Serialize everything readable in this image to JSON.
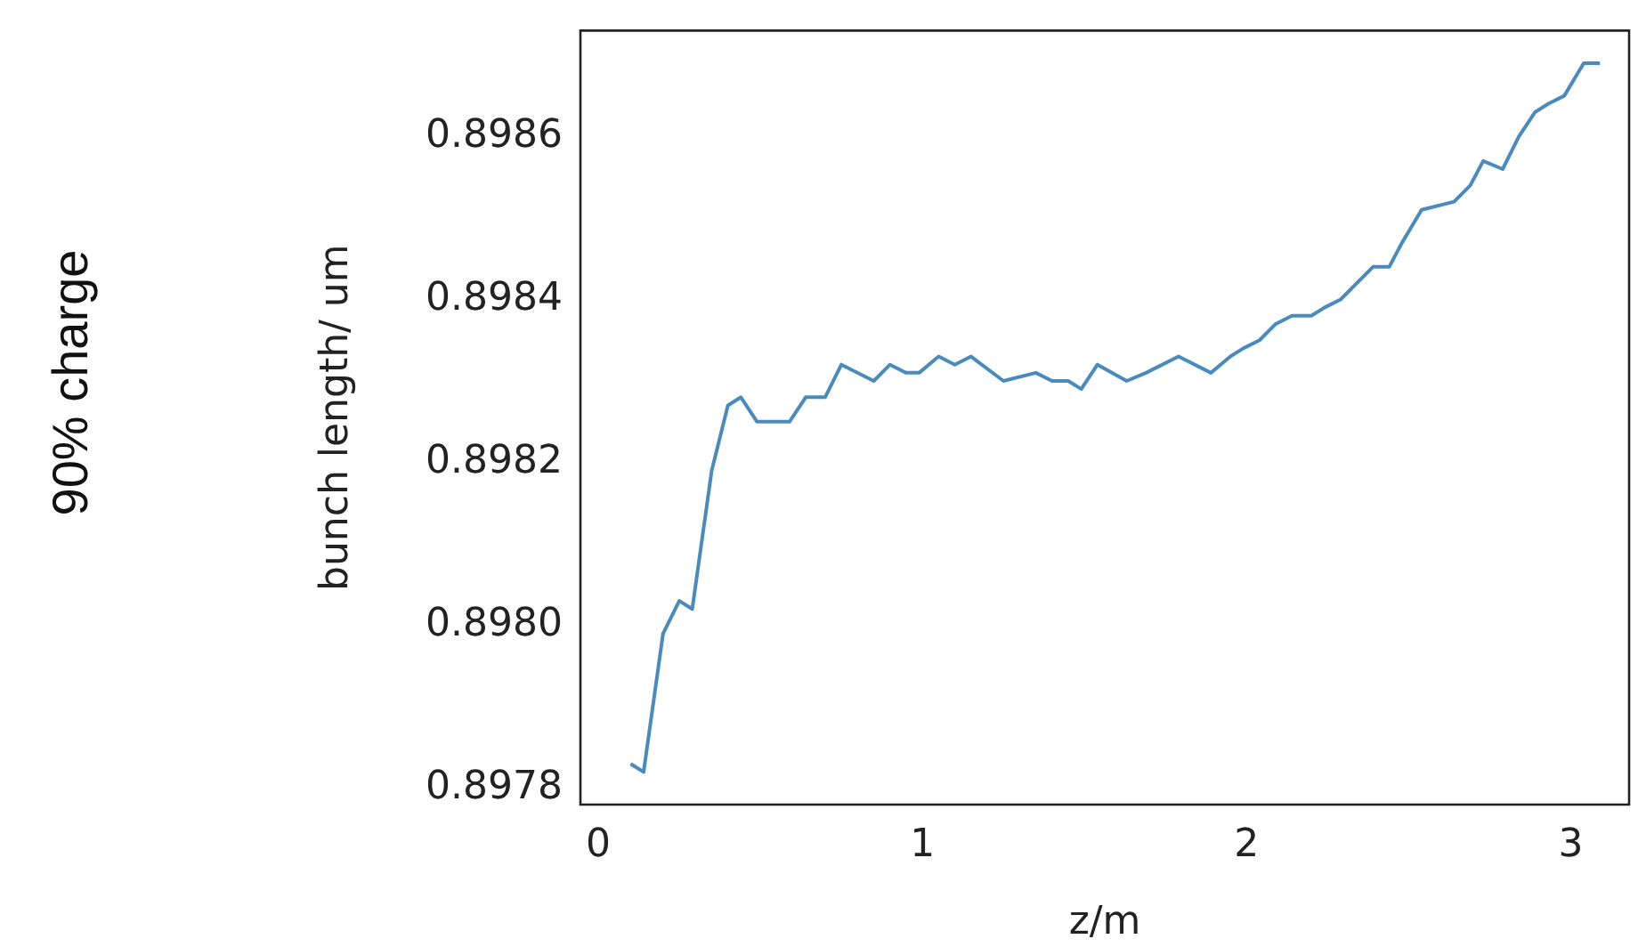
{
  "chart_data": {
    "type": "line",
    "xlabel": "z/m",
    "ylabel": "bunch length/ um",
    "annotations": [
      "90% charge"
    ],
    "x": [
      0.1,
      0.14,
      0.2,
      0.25,
      0.29,
      0.35,
      0.4,
      0.44,
      0.49,
      0.54,
      0.59,
      0.64,
      0.7,
      0.75,
      0.85,
      0.9,
      0.95,
      0.99,
      1.05,
      1.1,
      1.15,
      1.25,
      1.35,
      1.4,
      1.45,
      1.49,
      1.54,
      1.63,
      1.69,
      1.79,
      1.89,
      1.95,
      1.99,
      2.04,
      2.09,
      2.14,
      2.2,
      2.24,
      2.29,
      2.34,
      2.39,
      2.44,
      2.48,
      2.54,
      2.64,
      2.69,
      2.73,
      2.79,
      2.84,
      2.89,
      2.93,
      2.98,
      3.04,
      3.09
    ],
    "series": [
      {
        "color": "#4a8bbd",
        "values": [
          0.89783,
          0.89782,
          0.89799,
          0.89803,
          0.89802,
          0.89819,
          0.89827,
          0.89828,
          0.89825,
          0.89825,
          0.89825,
          0.89828,
          0.89828,
          0.89832,
          0.8983,
          0.89832,
          0.89831,
          0.89831,
          0.89833,
          0.89832,
          0.89833,
          0.8983,
          0.89831,
          0.8983,
          0.8983,
          0.89829,
          0.89832,
          0.8983,
          0.89831,
          0.89833,
          0.89831,
          0.89833,
          0.89834,
          0.89835,
          0.89837,
          0.89838,
          0.89838,
          0.89839,
          0.8984,
          0.89842,
          0.89844,
          0.89844,
          0.89847,
          0.89851,
          0.89852,
          0.89854,
          0.89857,
          0.89856,
          0.8986,
          0.89863,
          0.89864,
          0.89865,
          0.89869,
          0.89869
        ]
      }
    ],
    "xlim": [
      -0.055,
      3.18
    ],
    "ylim": [
      0.89778,
      0.89873
    ],
    "xticks": [
      0,
      1,
      2,
      3
    ],
    "yticks": [
      0.8978,
      {
        "value": 0.898,
        "label": "0.8980"
      },
      0.8982,
      0.8984,
      0.8986
    ],
    "grid": false,
    "legend": false,
    "marker": "none",
    "line_style": "solid"
  }
}
